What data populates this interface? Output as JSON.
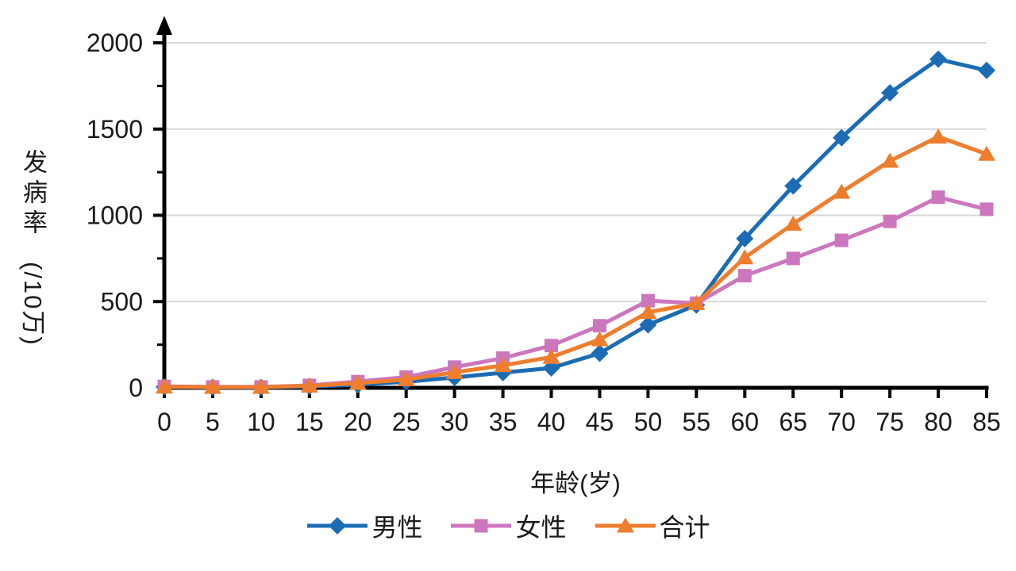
{
  "chart_data": {
    "type": "line",
    "title": "",
    "x": [
      0,
      5,
      10,
      15,
      20,
      25,
      30,
      35,
      40,
      45,
      50,
      55,
      60,
      65,
      70,
      75,
      80,
      85
    ],
    "xlabel": "年龄(岁)",
    "ylabel": "发病率(/10万)",
    "ylabel_upright": "发病率",
    "ylabel_rotated": "(/10万)",
    "ylim": [
      0,
      2000
    ],
    "yticks": [
      0,
      500,
      1000,
      1500,
      2000
    ],
    "ytick_minor_step": 250,
    "grid": "horizontal-major",
    "grid_color": "#D9D9D9",
    "axis_color": "#000000",
    "text_color": "#1a1a1a",
    "legend_position": "bottom-center",
    "series": [
      {
        "id": "male",
        "name": "男性",
        "marker": "diamond",
        "color": "#1B6CB5",
        "values": [
          5,
          3,
          3,
          8,
          18,
          35,
          60,
          88,
          115,
          200,
          365,
          480,
          865,
          1170,
          1450,
          1710,
          1905,
          1840
        ]
      },
      {
        "id": "female",
        "name": "女性",
        "marker": "square",
        "color": "#CC77BD",
        "values": [
          8,
          5,
          5,
          14,
          36,
          62,
          120,
          172,
          245,
          360,
          505,
          490,
          650,
          750,
          855,
          965,
          1105,
          1035
        ]
      },
      {
        "id": "total",
        "name": "合计",
        "marker": "triangle",
        "color": "#EE7D2E",
        "values": [
          6,
          4,
          4,
          11,
          27,
          48,
          90,
          130,
          178,
          280,
          438,
          490,
          755,
          950,
          1135,
          1315,
          1455,
          1355
        ]
      }
    ]
  }
}
